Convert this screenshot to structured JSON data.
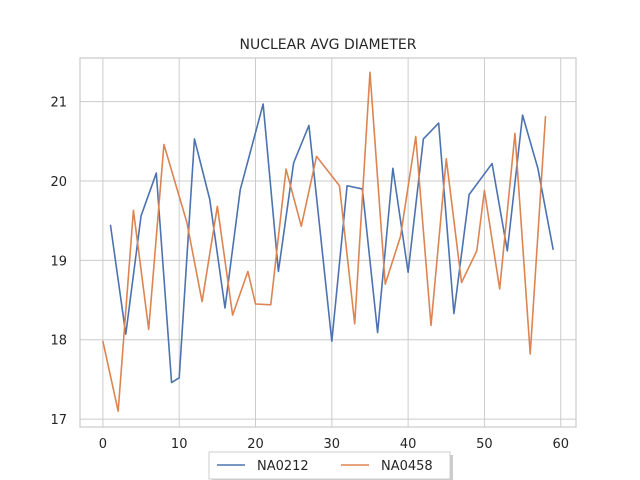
{
  "chart_data": {
    "type": "line",
    "title": "NUCLEAR AVG DIAMETER",
    "xlabel": "",
    "ylabel": "",
    "xlim": [
      -3,
      62
    ],
    "ylim": [
      16.9,
      21.55
    ],
    "xticks": [
      0,
      10,
      20,
      30,
      40,
      50,
      60
    ],
    "yticks": [
      17,
      18,
      19,
      20,
      21
    ],
    "grid": true,
    "legend_position": "bottom-center",
    "series": [
      {
        "name": "NA0212",
        "color": "#4c72b0",
        "x": [
          1,
          3,
          5,
          7,
          9,
          10,
          12,
          14,
          16,
          18,
          21,
          23,
          25,
          27,
          30,
          32,
          34,
          36,
          38,
          40,
          42,
          44,
          46,
          48,
          51,
          53,
          55,
          57,
          59
        ],
        "y": [
          19.44,
          18.07,
          19.56,
          20.1,
          17.46,
          17.52,
          20.53,
          19.77,
          18.4,
          19.89,
          20.97,
          18.86,
          20.23,
          20.7,
          17.98,
          19.94,
          19.9,
          18.09,
          20.16,
          18.85,
          20.53,
          20.73,
          18.33,
          19.83,
          20.22,
          19.12,
          20.83,
          20.16,
          19.14
        ]
      },
      {
        "name": "NA0458",
        "color": "#dd8452",
        "x": [
          0,
          2,
          4,
          6,
          8,
          11,
          13,
          15,
          17,
          19,
          20,
          22,
          24,
          26,
          28,
          31,
          33,
          35,
          37,
          39,
          41,
          43,
          45,
          47,
          49,
          50,
          52,
          54,
          56,
          58
        ],
        "y": [
          17.98,
          17.1,
          19.63,
          18.13,
          20.46,
          19.48,
          18.48,
          19.68,
          18.31,
          18.86,
          18.45,
          18.44,
          20.15,
          19.43,
          20.31,
          19.94,
          18.2,
          21.37,
          18.7,
          19.3,
          20.56,
          18.18,
          20.28,
          18.72,
          19.12,
          19.88,
          18.64,
          20.6,
          17.82,
          20.81
        ]
      }
    ]
  }
}
